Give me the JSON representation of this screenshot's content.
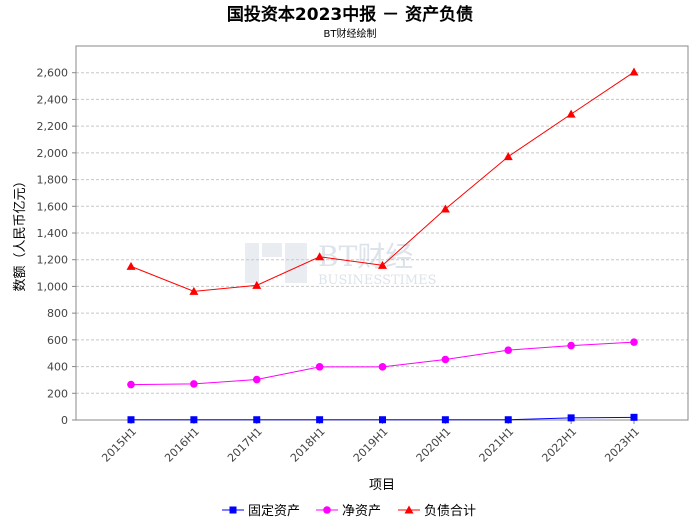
{
  "chart_data": {
    "type": "line",
    "title": "国投资本2023中报 － 资产负债",
    "subtitle": "BT财经绘制",
    "xlabel": "项目",
    "ylabel": "数额（人民币亿元）",
    "categories": [
      "2015H1",
      "2016H1",
      "2017H1",
      "2018H1",
      "2019H1",
      "2020H1",
      "2021H1",
      "2022H1",
      "2023H1"
    ],
    "ylim": [
      0,
      2800
    ],
    "yticks": [
      0,
      200,
      400,
      600,
      800,
      1000,
      1200,
      1400,
      1600,
      1800,
      2000,
      2200,
      2400,
      2600
    ],
    "grid": true,
    "legend_position": "bottom",
    "series": [
      {
        "name": "固定资产",
        "color": "#0000ff",
        "marker": "square",
        "values": [
          2,
          2,
          2,
          2,
          2,
          2,
          2,
          16,
          20
        ]
      },
      {
        "name": "净资产",
        "color": "#ff00ff",
        "marker": "circle",
        "values": [
          265,
          270,
          303,
          398,
          398,
          453,
          523,
          557,
          583
        ]
      },
      {
        "name": "负债合计",
        "color": "#ff0000",
        "marker": "triangle",
        "values": [
          1150,
          963,
          1008,
          1222,
          1158,
          1580,
          1972,
          2290,
          2605
        ]
      }
    ]
  },
  "watermark": {
    "brand": "BT财经",
    "sub": "BUSINESSTIMES"
  }
}
